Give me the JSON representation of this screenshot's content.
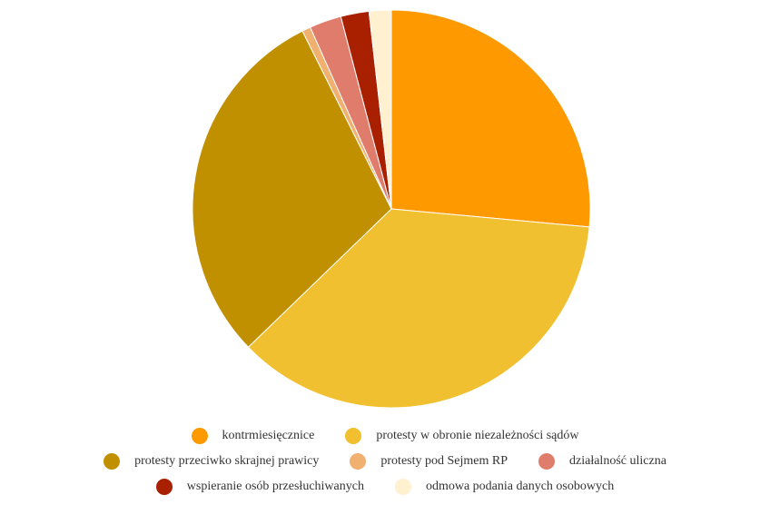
{
  "chart_data": {
    "type": "pie",
    "slices": [
      {
        "label": "kontrmiesięcznice",
        "value": 26.5,
        "color": "#FF9900"
      },
      {
        "label": "protesty w obronie niezależności sądów",
        "value": 36.4,
        "color": "#F0C030"
      },
      {
        "label": "protesty przeciwko skrajnej prawicy",
        "value": 29.9,
        "color": "#C09000"
      },
      {
        "label": "protesty pod Sejmem RP",
        "value": 0.7,
        "color": "#F0B070"
      },
      {
        "label": "działalność uliczna",
        "value": 2.6,
        "color": "#E07C6C"
      },
      {
        "label": "wspieranie osób przesłuchiwanych",
        "value": 2.3,
        "color": "#A82000"
      },
      {
        "label": "odmowa podania danych osobowych",
        "value": 1.8,
        "color": "#FFF0D0"
      }
    ],
    "legend": {
      "placement": "bottom",
      "rows": [
        [
          0,
          1
        ],
        [
          2,
          3,
          4
        ],
        [
          5,
          6
        ]
      ]
    }
  }
}
